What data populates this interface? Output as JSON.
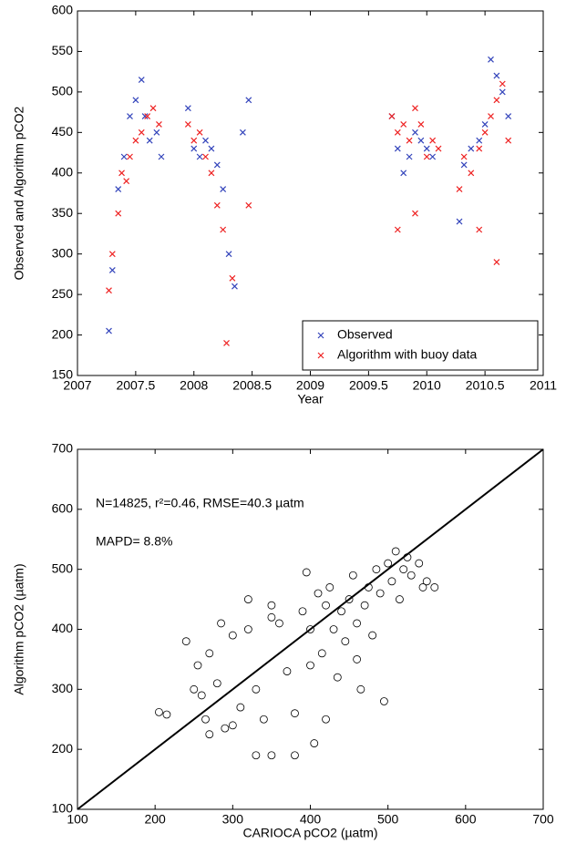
{
  "chart_data": [
    {
      "type": "scatter",
      "marker": "x",
      "xlabel": "Year",
      "ylabel": "Observed and Algorithm pCO2",
      "xlim": [
        2007,
        2011
      ],
      "xticks": [
        2007,
        2007.5,
        2008,
        2008.5,
        2009,
        2009.5,
        2010,
        2010.5,
        2011
      ],
      "ylim": [
        150,
        600
      ],
      "yticks": [
        150,
        200,
        250,
        300,
        350,
        400,
        450,
        500,
        550,
        600
      ],
      "legend": "lower right",
      "series": [
        {
          "name": "Observed",
          "color": "#3344bb",
          "x": [
            2007.27,
            2007.3,
            2007.35,
            2007.4,
            2007.45,
            2007.5,
            2007.55,
            2007.58,
            2007.62,
            2007.68,
            2007.72,
            2007.95,
            2008.0,
            2008.05,
            2008.1,
            2008.15,
            2008.2,
            2008.25,
            2008.3,
            2008.35,
            2008.42,
            2008.47,
            2009.7,
            2009.75,
            2009.8,
            2009.85,
            2009.9,
            2009.95,
            2010.0,
            2010.05,
            2010.28,
            2010.32,
            2010.38,
            2010.45,
            2010.5,
            2010.55,
            2010.6,
            2010.65,
            2010.7
          ],
          "values": [
            205,
            280,
            380,
            420,
            470,
            490,
            515,
            470,
            440,
            450,
            420,
            480,
            430,
            420,
            440,
            430,
            410,
            380,
            300,
            260,
            450,
            490,
            470,
            430,
            400,
            420,
            450,
            440,
            430,
            420,
            340,
            410,
            430,
            440,
            460,
            540,
            520,
            500,
            470
          ]
        },
        {
          "name": "Algorithm with buoy data",
          "color": "#ee2222",
          "x": [
            2007.27,
            2007.3,
            2007.35,
            2007.38,
            2007.42,
            2007.45,
            2007.5,
            2007.55,
            2007.6,
            2007.65,
            2007.7,
            2007.95,
            2008.0,
            2008.05,
            2008.1,
            2008.15,
            2008.2,
            2008.25,
            2008.28,
            2008.33,
            2008.47,
            2009.7,
            2009.75,
            2009.8,
            2009.85,
            2009.9,
            2009.95,
            2010.0,
            2010.05,
            2010.1,
            2010.28,
            2010.32,
            2010.38,
            2010.45,
            2010.5,
            2010.55,
            2010.6,
            2010.65,
            2010.7,
            2009.75,
            2009.9,
            2010.45,
            2010.6
          ],
          "values": [
            255,
            300,
            350,
            400,
            390,
            420,
            440,
            450,
            470,
            480,
            460,
            460,
            440,
            450,
            420,
            400,
            360,
            330,
            190,
            270,
            360,
            470,
            450,
            460,
            440,
            480,
            460,
            420,
            440,
            430,
            380,
            420,
            400,
            430,
            450,
            470,
            490,
            510,
            440,
            330,
            350,
            330,
            290
          ]
        }
      ]
    },
    {
      "type": "scatter",
      "marker": "o",
      "xlabel": "CARIOCA pCO2 (µatm)",
      "ylabel": "Algorithm pCO2 (µatm)",
      "annotations": [
        "N=14825, r²=0.46, RMSE=40.3 µatm",
        "MAPD= 8.8%"
      ],
      "xlim": [
        100,
        700
      ],
      "xticks": [
        100,
        200,
        300,
        400,
        500,
        600,
        700
      ],
      "ylim": [
        100,
        700
      ],
      "yticks": [
        100,
        200,
        300,
        400,
        500,
        600,
        700
      ],
      "series": [
        {
          "color": "#000000",
          "x": [
            205,
            215,
            250,
            255,
            260,
            265,
            270,
            280,
            290,
            300,
            310,
            320,
            330,
            330,
            340,
            350,
            350,
            360,
            370,
            380,
            390,
            400,
            400,
            405,
            410,
            415,
            420,
            425,
            430,
            435,
            440,
            445,
            450,
            455,
            460,
            465,
            470,
            475,
            480,
            485,
            490,
            495,
            500,
            505,
            510,
            515,
            520,
            525,
            530,
            540,
            545,
            550,
            560,
            240,
            270,
            285,
            350,
            420,
            460,
            380,
            320,
            395,
            300
          ],
          "values": [
            262,
            258,
            300,
            340,
            290,
            250,
            225,
            310,
            235,
            240,
            270,
            400,
            300,
            190,
            250,
            420,
            190,
            410,
            330,
            190,
            430,
            400,
            340,
            210,
            460,
            360,
            440,
            470,
            400,
            320,
            430,
            380,
            450,
            490,
            410,
            300,
            440,
            470,
            390,
            500,
            460,
            280,
            510,
            480,
            530,
            450,
            500,
            520,
            490,
            510,
            470,
            480,
            470,
            380,
            360,
            410,
            440,
            250,
            350,
            260,
            450,
            495,
            390
          ]
        }
      ]
    }
  ]
}
